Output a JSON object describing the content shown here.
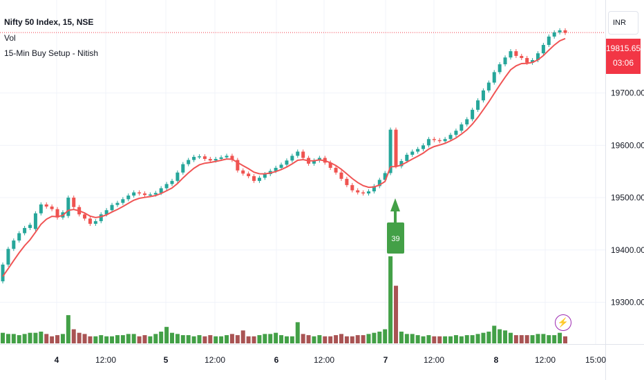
{
  "header": {
    "title": "Nifty 50 Index, 15, NSE",
    "volume_label": "Vol",
    "indicator_label": "15-Min Buy Setup - Nitish"
  },
  "currency": "INR",
  "last_price": {
    "value": "19815.65",
    "countdown": "03:06"
  },
  "signal": {
    "label": "39",
    "color": "#43a047"
  },
  "colors": {
    "up": "#26a69a",
    "down": "#ef5350",
    "ema": "#f05454",
    "vol_up": "#43a047",
    "vol_down": "#a95454",
    "last_price": "#f23645",
    "alert": "#9c27b0"
  },
  "icons": {
    "alert": "lightning-bolt-icon"
  },
  "chart_data": {
    "type": "candlestick",
    "y_axis": {
      "ticks": [
        "19300.00",
        "19400.00",
        "19500.00",
        "19600.00",
        "19700.00"
      ],
      "tick_values": [
        19300,
        19400,
        19500,
        19600,
        19700
      ],
      "range": [
        19220,
        19870
      ]
    },
    "x_axis": {
      "ticks": [
        "4",
        "12:00",
        "5",
        "12:00",
        "6",
        "12:00",
        "7",
        "12:00",
        "8",
        "12:00",
        "15:00"
      ]
    },
    "series": [
      {
        "name": "Nifty 50 Index",
        "kind": "price",
        "points": [
          [
            19340,
            19372
          ],
          [
            19372,
            19402
          ],
          [
            19402,
            19418
          ],
          [
            19418,
            19432
          ],
          [
            19432,
            19442
          ],
          [
            19442,
            19448
          ],
          [
            19440,
            19470
          ],
          [
            19470,
            19487
          ],
          [
            19487,
            19483
          ],
          [
            19483,
            19478
          ],
          [
            19478,
            19462
          ],
          [
            19462,
            19472
          ],
          [
            19465,
            19500
          ],
          [
            19500,
            19482
          ],
          [
            19482,
            19468
          ],
          [
            19468,
            19460
          ],
          [
            19460,
            19450
          ],
          [
            19450,
            19455
          ],
          [
            19455,
            19468
          ],
          [
            19468,
            19476
          ],
          [
            19476,
            19486
          ],
          [
            19486,
            19490
          ],
          [
            19490,
            19497
          ],
          [
            19497,
            19504
          ],
          [
            19504,
            19510
          ],
          [
            19510,
            19508
          ],
          [
            19508,
            19505
          ],
          [
            19505,
            19506
          ],
          [
            19506,
            19509
          ],
          [
            19509,
            19518
          ],
          [
            19518,
            19526
          ],
          [
            19526,
            19532
          ],
          [
            19532,
            19548
          ],
          [
            19548,
            19564
          ],
          [
            19564,
            19572
          ],
          [
            19572,
            19578
          ],
          [
            19578,
            19579
          ],
          [
            19579,
            19574
          ],
          [
            19574,
            19571
          ],
          [
            19571,
            19574
          ],
          [
            19574,
            19577
          ],
          [
            19577,
            19580
          ],
          [
            19580,
            19572
          ],
          [
            19572,
            19552
          ],
          [
            19552,
            19546
          ],
          [
            19546,
            19541
          ],
          [
            19541,
            19532
          ],
          [
            19532,
            19538
          ],
          [
            19538,
            19545
          ],
          [
            19545,
            19551
          ],
          [
            19551,
            19557
          ],
          [
            19557,
            19563
          ],
          [
            19563,
            19571
          ],
          [
            19571,
            19580
          ],
          [
            19580,
            19588
          ],
          [
            19588,
            19576
          ],
          [
            19576,
            19565
          ],
          [
            19565,
            19571
          ],
          [
            19571,
            19576
          ],
          [
            19576,
            19567
          ],
          [
            19567,
            19557
          ],
          [
            19557,
            19548
          ],
          [
            19548,
            19536
          ],
          [
            19536,
            19524
          ],
          [
            19524,
            19514
          ],
          [
            19514,
            19510
          ],
          [
            19510,
            19508
          ],
          [
            19508,
            19512
          ],
          [
            19512,
            19522
          ],
          [
            19522,
            19534
          ],
          [
            19534,
            19547
          ],
          [
            19547,
            19630
          ],
          [
            19630,
            19560
          ],
          [
            19560,
            19570
          ],
          [
            19570,
            19582
          ],
          [
            19582,
            19588
          ],
          [
            19588,
            19593
          ],
          [
            19593,
            19600
          ],
          [
            19600,
            19612
          ],
          [
            19612,
            19610
          ],
          [
            19610,
            19608
          ],
          [
            19608,
            19612
          ],
          [
            19612,
            19620
          ],
          [
            19620,
            19628
          ],
          [
            19628,
            19640
          ],
          [
            19640,
            19650
          ],
          [
            19650,
            19668
          ],
          [
            19668,
            19686
          ],
          [
            19686,
            19705
          ],
          [
            19705,
            19720
          ],
          [
            19720,
            19740
          ],
          [
            19740,
            19755
          ],
          [
            19755,
            19768
          ],
          [
            19768,
            19780
          ],
          [
            19780,
            19771
          ],
          [
            19771,
            19767
          ],
          [
            19767,
            19758
          ],
          [
            19758,
            19763
          ],
          [
            19763,
            19776
          ],
          [
            19776,
            19792
          ],
          [
            19792,
            19808
          ],
          [
            19808,
            19816
          ],
          [
            19816,
            19820
          ],
          [
            19820,
            19815
          ]
        ]
      },
      {
        "name": "Vol",
        "kind": "volume",
        "values": [
          9,
          8,
          8,
          7,
          8,
          9,
          9,
          10,
          8,
          6,
          7,
          8,
          24,
          12,
          9,
          8,
          6,
          6,
          7,
          6,
          6,
          7,
          7,
          8,
          8,
          6,
          7,
          6,
          8,
          10,
          14,
          9,
          8,
          7,
          7,
          6,
          7,
          6,
          7,
          6,
          6,
          7,
          8,
          7,
          11,
          6,
          6,
          7,
          8,
          8,
          9,
          7,
          6,
          6,
          18,
          8,
          7,
          6,
          7,
          6,
          6,
          7,
          8,
          6,
          6,
          7,
          7,
          8,
          9,
          10,
          12,
          74,
          49,
          10,
          8,
          8,
          7,
          6,
          7,
          6,
          6,
          6,
          6,
          7,
          6,
          7,
          7,
          8,
          9,
          10,
          15,
          12,
          11,
          9,
          7,
          7,
          7,
          7,
          8,
          8,
          7,
          7,
          9,
          6
        ]
      }
    ]
  }
}
